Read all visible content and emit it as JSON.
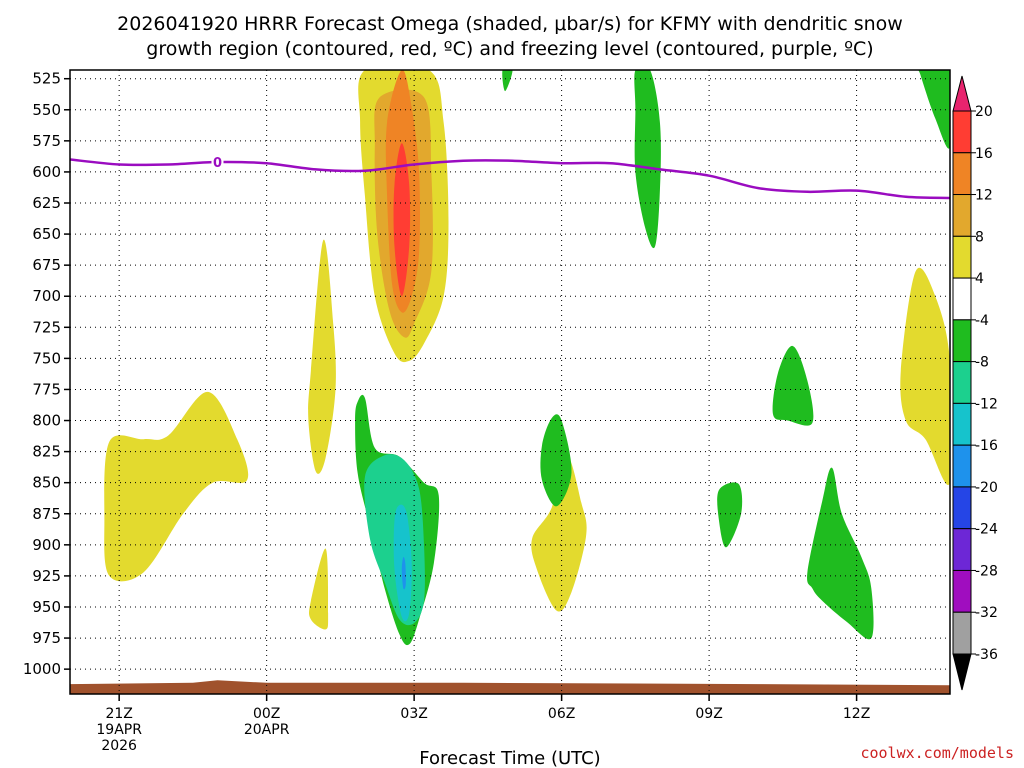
{
  "chart_data": {
    "type": "contour",
    "title_line1": "2026041920 HRRR Forecast Omega (shaded, μbar/s) for KFMY with dendritic snow",
    "title_line2": "growth region (contoured, red, ºC) and freezing level (contoured, purple, ºC)",
    "xlabel": "Forecast Time (UTC)",
    "credit": "coolwx.com/models",
    "x_ticks": [
      {
        "hour": 0,
        "lines": [
          "21Z",
          "19APR",
          "2026"
        ]
      },
      {
        "hour": 3,
        "lines": [
          "00Z",
          "20APR"
        ]
      },
      {
        "hour": 6,
        "lines": [
          "03Z"
        ]
      },
      {
        "hour": 9,
        "lines": [
          "06Z"
        ]
      },
      {
        "hour": 12,
        "lines": [
          "09Z"
        ]
      },
      {
        "hour": 15,
        "lines": [
          "12Z"
        ]
      }
    ],
    "x_range_hours": [
      -1,
      16.9
    ],
    "y_ticks": [
      525,
      550,
      575,
      600,
      625,
      650,
      675,
      700,
      725,
      750,
      775,
      800,
      825,
      850,
      875,
      900,
      925,
      950,
      975,
      1000
    ],
    "y_range_hpa": [
      518,
      1020
    ],
    "freezing_level_label": "0",
    "freezing_level": [
      {
        "hour": -1.0,
        "p": 590
      },
      {
        "hour": 0.0,
        "p": 594
      },
      {
        "hour": 1.0,
        "p": 594
      },
      {
        "hour": 2.0,
        "p": 592
      },
      {
        "hour": 3.0,
        "p": 593
      },
      {
        "hour": 4.0,
        "p": 598
      },
      {
        "hour": 5.0,
        "p": 599
      },
      {
        "hour": 6.0,
        "p": 594
      },
      {
        "hour": 7.0,
        "p": 591
      },
      {
        "hour": 8.0,
        "p": 591
      },
      {
        "hour": 9.0,
        "p": 593
      },
      {
        "hour": 10.0,
        "p": 593
      },
      {
        "hour": 11.0,
        "p": 598
      },
      {
        "hour": 12.0,
        "p": 603
      },
      {
        "hour": 13.0,
        "p": 613
      },
      {
        "hour": 14.0,
        "p": 616
      },
      {
        "hour": 15.0,
        "p": 615
      },
      {
        "hour": 16.0,
        "p": 620
      },
      {
        "hour": 16.9,
        "p": 621
      }
    ],
    "colorbar": {
      "labels": [
        "20",
        "16",
        "12",
        "8",
        "4",
        "-4",
        "-8",
        "-12",
        "-16",
        "-20",
        "-24",
        "-28",
        "-32",
        "-36"
      ],
      "colors": [
        "#e8246e",
        "#ff3d33",
        "#ef8425",
        "#e2a82d",
        "#e3da2e",
        "#ffffff",
        "#1fbc1f",
        "#1cd08e",
        "#16c3cc",
        "#1e92ec",
        "#2545e6",
        "#6d27d6",
        "#a00dbf",
        "#a0a0a0",
        "#000000"
      ]
    },
    "colors": {
      "freezing_level": "#9a0cc0",
      "terrain": "#a0522d",
      "credit": "#cc2222",
      "grid": "#000000"
    },
    "omega_regions": [
      {
        "name": "rising-core",
        "level": "4",
        "color": "#e3da2e",
        "points": [
          [
            5.0,
            518
          ],
          [
            6.3,
            518
          ],
          [
            6.6,
            560
          ],
          [
            6.7,
            640
          ],
          [
            6.6,
            700
          ],
          [
            6.2,
            738
          ],
          [
            5.9,
            752
          ],
          [
            5.6,
            746
          ],
          [
            5.2,
            700
          ],
          [
            5.0,
            620
          ],
          [
            4.9,
            560
          ]
        ]
      },
      {
        "name": "rising-core",
        "level": "8",
        "color": "#e2a82d",
        "points": [
          [
            5.3,
            540
          ],
          [
            6.2,
            540
          ],
          [
            6.35,
            600
          ],
          [
            6.35,
            680
          ],
          [
            6.0,
            722
          ],
          [
            5.8,
            733
          ],
          [
            5.5,
            712
          ],
          [
            5.25,
            650
          ],
          [
            5.2,
            580
          ]
        ]
      },
      {
        "name": "rising-core",
        "level": "12",
        "color": "#ef8425",
        "points": [
          [
            5.75,
            518
          ],
          [
            5.95,
            548
          ],
          [
            6.1,
            600
          ],
          [
            6.1,
            665
          ],
          [
            5.95,
            700
          ],
          [
            5.75,
            713
          ],
          [
            5.55,
            690
          ],
          [
            5.45,
            620
          ],
          [
            5.45,
            560
          ]
        ]
      },
      {
        "name": "rising-core",
        "level": "16",
        "color": "#ff3d33",
        "points": [
          [
            5.75,
            577
          ],
          [
            5.9,
            610
          ],
          [
            5.9,
            660
          ],
          [
            5.75,
            700
          ],
          [
            5.6,
            660
          ],
          [
            5.6,
            610
          ]
        ]
      },
      {
        "name": "rising-area",
        "level": "4",
        "color": "#e3da2e",
        "points": [
          [
            -0.2,
            817
          ],
          [
            0.5,
            815
          ],
          [
            1.0,
            812
          ],
          [
            1.8,
            777
          ],
          [
            2.4,
            815
          ],
          [
            2.6,
            848
          ],
          [
            1.9,
            850
          ],
          [
            1.3,
            875
          ],
          [
            0.5,
            922
          ],
          [
            -0.2,
            925
          ],
          [
            -0.3,
            880
          ]
        ]
      },
      {
        "name": "rising-area",
        "level": "4",
        "color": "#e3da2e",
        "points": [
          [
            3.9,
            760
          ],
          [
            4.15,
            655
          ],
          [
            4.35,
            720
          ],
          [
            4.4,
            775
          ],
          [
            4.2,
            830
          ],
          [
            4.0,
            841
          ],
          [
            3.85,
            800
          ]
        ]
      },
      {
        "name": "rising-area",
        "level": "4",
        "color": "#e3da2e",
        "points": [
          [
            3.9,
            945
          ],
          [
            4.2,
            903
          ],
          [
            4.25,
            955
          ],
          [
            4.2,
            968
          ],
          [
            3.9,
            960
          ]
        ]
      },
      {
        "name": "rising-area",
        "level": "4",
        "color": "#e3da2e",
        "points": [
          [
            8.4,
            895
          ],
          [
            8.8,
            870
          ],
          [
            9.1,
            828
          ],
          [
            9.4,
            866
          ],
          [
            9.5,
            892
          ],
          [
            9.2,
            938
          ],
          [
            8.9,
            953
          ],
          [
            8.5,
            920
          ]
        ]
      },
      {
        "name": "rising-area",
        "level": "4",
        "color": "#e3da2e",
        "points": [
          [
            15.9,
            760
          ],
          [
            16.2,
            680
          ],
          [
            16.6,
            700
          ],
          [
            16.9,
            752
          ],
          [
            16.9,
            850
          ],
          [
            16.4,
            815
          ],
          [
            16.0,
            800
          ]
        ]
      },
      {
        "name": "sinking-core",
        "level": "-4",
        "color": "#1fbc1f",
        "points": [
          [
            5.0,
            782
          ],
          [
            5.2,
            822
          ],
          [
            5.7,
            829
          ],
          [
            6.2,
            850
          ],
          [
            6.5,
            860
          ],
          [
            6.4,
            915
          ],
          [
            6.1,
            960
          ],
          [
            5.9,
            980
          ],
          [
            5.7,
            972
          ],
          [
            5.4,
            935
          ],
          [
            5.1,
            885
          ],
          [
            4.85,
            842
          ],
          [
            4.8,
            800
          ],
          [
            4.85,
            785
          ]
        ]
      },
      {
        "name": "sinking-core",
        "level": "-8",
        "color": "#1cd08e",
        "points": [
          [
            5.0,
            845
          ],
          [
            5.4,
            828
          ],
          [
            5.8,
            832
          ],
          [
            6.1,
            855
          ],
          [
            6.2,
            900
          ],
          [
            6.2,
            945
          ],
          [
            6.0,
            963
          ],
          [
            5.7,
            960
          ],
          [
            5.4,
            930
          ],
          [
            5.1,
            895
          ]
        ]
      },
      {
        "name": "sinking-core",
        "level": "-12",
        "color": "#16c3cc",
        "points": [
          [
            5.7,
            868
          ],
          [
            5.85,
            875
          ],
          [
            5.95,
            915
          ],
          [
            5.9,
            955
          ],
          [
            5.75,
            958
          ],
          [
            5.6,
            920
          ],
          [
            5.6,
            880
          ]
        ]
      },
      {
        "name": "sinking-core",
        "level": "-16",
        "color": "#1e92ec",
        "points": [
          [
            5.78,
            910
          ],
          [
            5.82,
            915
          ],
          [
            5.83,
            932
          ],
          [
            5.78,
            935
          ],
          [
            5.75,
            920
          ]
        ]
      },
      {
        "name": "sinking-area",
        "level": "-4",
        "color": "#1fbc1f",
        "points": [
          [
            7.8,
            518
          ],
          [
            8.0,
            518
          ],
          [
            7.85,
            535
          ]
        ]
      },
      {
        "name": "sinking-area",
        "level": "-4",
        "color": "#1fbc1f",
        "points": [
          [
            10.5,
            518
          ],
          [
            10.8,
            518
          ],
          [
            11.0,
            560
          ],
          [
            11.0,
            615
          ],
          [
            10.9,
            660
          ],
          [
            10.7,
            645
          ],
          [
            10.5,
            600
          ],
          [
            10.5,
            550
          ]
        ]
      },
      {
        "name": "sinking-area",
        "level": "-4",
        "color": "#1fbc1f",
        "points": [
          [
            16.3,
            518
          ],
          [
            16.9,
            518
          ],
          [
            16.9,
            580
          ],
          [
            16.6,
            557
          ],
          [
            16.3,
            522
          ]
        ]
      },
      {
        "name": "sinking-area",
        "level": "-4",
        "color": "#1fbc1f",
        "points": [
          [
            8.8,
            798
          ],
          [
            9.0,
            800
          ],
          [
            9.2,
            842
          ],
          [
            8.9,
            869
          ],
          [
            8.6,
            848
          ],
          [
            8.6,
            820
          ]
        ]
      },
      {
        "name": "sinking-area",
        "level": "-4",
        "color": "#1fbc1f",
        "points": [
          [
            12.2,
            856
          ],
          [
            12.6,
            851
          ],
          [
            12.65,
            875
          ],
          [
            12.35,
            902
          ],
          [
            12.2,
            880
          ]
        ]
      },
      {
        "name": "sinking-area",
        "level": "-4",
        "color": "#1fbc1f",
        "points": [
          [
            13.4,
            762
          ],
          [
            13.7,
            740
          ],
          [
            14.0,
            768
          ],
          [
            14.1,
            802
          ],
          [
            13.6,
            800
          ],
          [
            13.3,
            795
          ]
        ]
      },
      {
        "name": "sinking-area",
        "level": "-4",
        "color": "#1fbc1f",
        "points": [
          [
            14.0,
            922
          ],
          [
            14.3,
            865
          ],
          [
            14.5,
            838
          ],
          [
            14.7,
            875
          ],
          [
            15.1,
            910
          ],
          [
            15.3,
            935
          ],
          [
            15.3,
            975
          ],
          [
            14.8,
            962
          ],
          [
            14.3,
            945
          ],
          [
            14.1,
            935
          ]
        ]
      }
    ],
    "terrain": [
      {
        "hour": -1.0,
        "p": 1012
      },
      {
        "hour": 1.5,
        "p": 1011
      },
      {
        "hour": 2.0,
        "p": 1009
      },
      {
        "hour": 3.0,
        "p": 1011
      },
      {
        "hour": 7.0,
        "p": 1011
      },
      {
        "hour": 13.0,
        "p": 1012
      },
      {
        "hour": 16.9,
        "p": 1013
      }
    ]
  }
}
